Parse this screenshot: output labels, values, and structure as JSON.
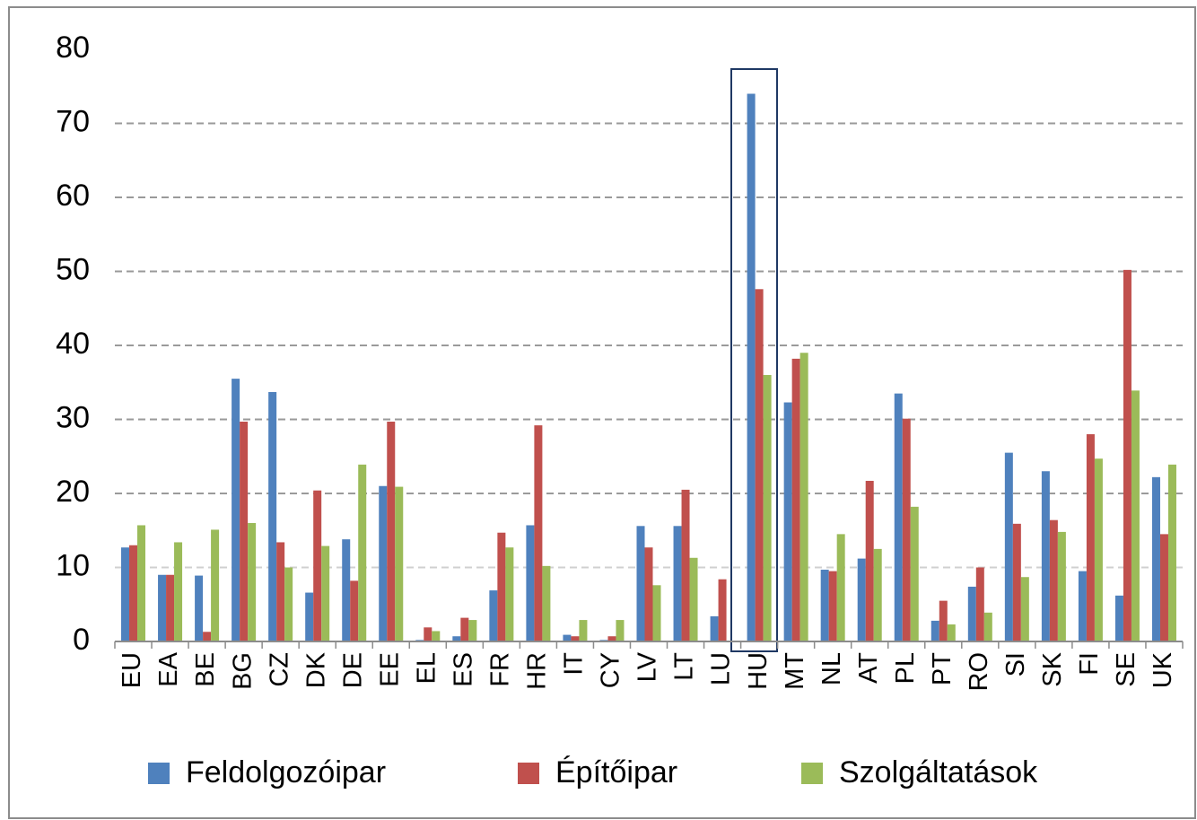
{
  "chart_data": {
    "type": "bar",
    "categories": [
      "EU",
      "EA",
      "BE",
      "BG",
      "CZ",
      "DK",
      "DE",
      "EE",
      "EL",
      "ES",
      "FR",
      "HR",
      "IT",
      "CY",
      "LV",
      "LT",
      "LU",
      "HU",
      "MT",
      "NL",
      "AT",
      "PL",
      "PT",
      "RO",
      "SI",
      "SK",
      "FI",
      "SE",
      "UK"
    ],
    "series": [
      {
        "name": "Feldolgozóipar",
        "color": "#4f81bd",
        "values": [
          12.7,
          9,
          8.9,
          35.5,
          33.7,
          6.6,
          13.8,
          21,
          0.2,
          0.7,
          6.9,
          15.7,
          0.9,
          0.2,
          15.6,
          15.6,
          3.4,
          74,
          32.3,
          9.7,
          11.2,
          33.5,
          2.8,
          7.4,
          25.5,
          23,
          9.5,
          6.2,
          22.2
        ]
      },
      {
        "name": "Építőipar",
        "color": "#c0504d",
        "values": [
          13,
          9,
          1.3,
          29.7,
          13.4,
          20.4,
          8.2,
          29.7,
          1.9,
          3.2,
          14.7,
          29.2,
          0.7,
          0.7,
          12.7,
          20.5,
          8.4,
          47.6,
          38.2,
          9.5,
          21.7,
          30.1,
          5.5,
          10,
          15.9,
          16.4,
          28,
          50.2,
          14.5
        ]
      },
      {
        "name": "Szolgáltatások",
        "color": "#9bbb59",
        "values": [
          15.7,
          13.4,
          15.1,
          16,
          10,
          12.9,
          23.9,
          20.9,
          1.4,
          2.9,
          12.7,
          10.2,
          2.9,
          2.9,
          7.6,
          11.3,
          0,
          36,
          39,
          14.5,
          12.5,
          18.2,
          2.3,
          3.9,
          8.7,
          14.8,
          24.7,
          33.9,
          23.9
        ]
      }
    ],
    "ylim": [
      0,
      80
    ],
    "yticks": [
      0,
      10,
      20,
      30,
      40,
      50,
      60,
      70,
      80
    ],
    "grid": true,
    "legend": "bottom"
  }
}
